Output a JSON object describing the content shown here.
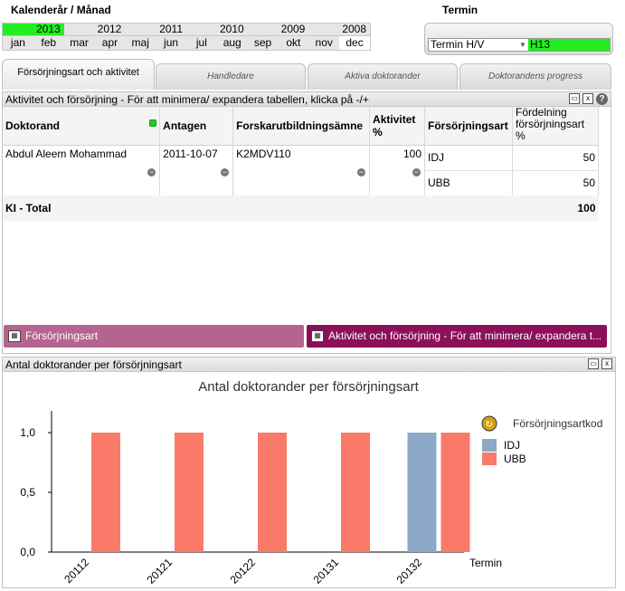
{
  "header": {
    "kalender_label": "Kalenderår / Månad",
    "termin_label": "Termin"
  },
  "years": [
    "2013",
    "2012",
    "2011",
    "2010",
    "2009",
    "2008"
  ],
  "selected_year": "2013",
  "months": [
    "jan",
    "feb",
    "mar",
    "apr",
    "maj",
    "jun",
    "jul",
    "aug",
    "sep",
    "okt",
    "nov",
    "dec"
  ],
  "termin": {
    "select_label": "Termin H/V",
    "selected_value": "H13"
  },
  "tabs": [
    {
      "label": "Försörjningsart och aktivitet",
      "active": true
    },
    {
      "label": "Handledare",
      "active": false
    },
    {
      "label": "Aktiva doktorander",
      "active": false
    },
    {
      "label": "Doktorandens progress",
      "active": false
    }
  ],
  "table_panel": {
    "title": "Aktivitet och försörjning - För att minimera/ expandera tabellen, klicka på -/+",
    "columns": [
      "Doktorand",
      "Antagen",
      "Forskarutbildningsämne",
      "Aktivitet %",
      "Försörjningsart",
      "Fördelning försörjningsart %"
    ],
    "row": {
      "doktorand": "Abdul Aleem Mohammad",
      "antagen": "2011-10-07",
      "amne": "K2MDV110",
      "aktivitet": "100",
      "sub": [
        {
          "art": "IDJ",
          "fordelning": "50"
        },
        {
          "art": "UBB",
          "fordelning": "50"
        }
      ]
    },
    "total_label": "KI - Total",
    "total_value": "100"
  },
  "buttons": {
    "forsorjningsart": "Försörjningsart",
    "aktivitet": "Aktivitet och försörjning - För att minimera/ expandera t..."
  },
  "chart_panel": {
    "title": "Antal doktorander per försörjningsart"
  },
  "colors": {
    "IDJ": "#8da9c8",
    "UBB": "#fa7a6a",
    "selected_green": "#22ee22",
    "btn_left": "#b5648f",
    "btn_right": "#8b0f59"
  },
  "chart_data": {
    "type": "bar",
    "title": "Antal doktorander per försörjningsart",
    "xlabel": "Termin",
    "ylabel": "",
    "legend_title": "Försörjningsartkod",
    "legend_position": "right",
    "categories": [
      "20112",
      "20121",
      "20122",
      "20131",
      "20132"
    ],
    "series": [
      {
        "name": "IDJ",
        "values": [
          0,
          0,
          0,
          0,
          1
        ]
      },
      {
        "name": "UBB",
        "values": [
          1,
          1,
          1,
          1,
          1
        ]
      }
    ],
    "yticks": [
      "0,0",
      "0,5",
      "1,0"
    ],
    "ylim": [
      0,
      1
    ]
  }
}
